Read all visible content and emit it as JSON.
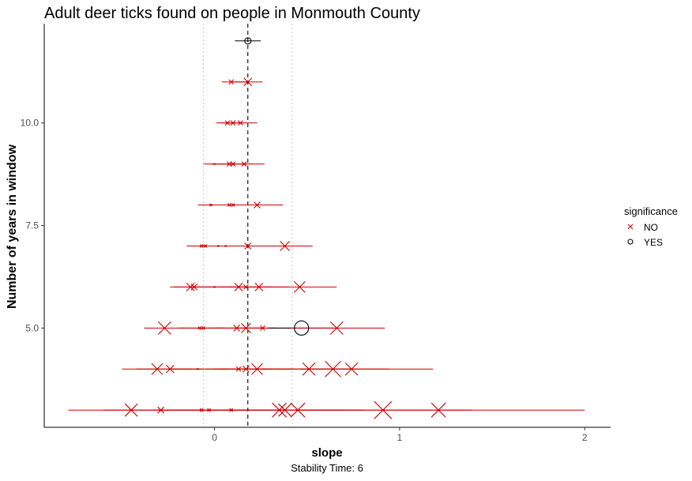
{
  "chart_data": {
    "type": "scatter",
    "title": "Adult deer ticks found on people in Monmouth County",
    "xlabel": "slope",
    "ylabel": "Number of years in window",
    "caption": "Stability Time: 6",
    "xlim": [
      -0.92,
      2.14
    ],
    "ylim": [
      2.58,
      12.42
    ],
    "x_ticks": [
      0,
      1,
      2
    ],
    "y_ticks": [
      5.0,
      7.5,
      10.0
    ],
    "y_tick_labels": [
      "5.0",
      "7.5",
      "10.0"
    ],
    "reference_lines": {
      "dashed_x": 0.18,
      "dotted_x": [
        -0.06,
        0.42
      ]
    },
    "legend": {
      "title": "significance",
      "position": "right",
      "items": [
        {
          "label": "NO",
          "color": "#cc0000",
          "marker": "x"
        },
        {
          "label": "YES",
          "color": "#000000",
          "marker": "circle"
        }
      ]
    },
    "rows": [
      {
        "y": 12,
        "points": [
          {
            "x": 0.18,
            "lo": 0.11,
            "hi": 0.25,
            "sig": "YES",
            "size": 8
          }
        ]
      },
      {
        "y": 11,
        "points": [
          {
            "x": 0.09,
            "lo": 0.04,
            "hi": 0.18,
            "sig": "NO",
            "size": 6
          },
          {
            "x": 0.18,
            "lo": 0.09,
            "hi": 0.26,
            "sig": "NO",
            "size": 10
          }
        ]
      },
      {
        "y": 10,
        "points": [
          {
            "x": 0.07,
            "lo": 0.01,
            "hi": 0.13,
            "sig": "NO",
            "size": 6
          },
          {
            "x": 0.1,
            "lo": 0.03,
            "hi": 0.17,
            "sig": "NO",
            "size": 6
          },
          {
            "x": 0.14,
            "lo": 0.05,
            "hi": 0.23,
            "sig": "NO",
            "size": 6
          }
        ]
      },
      {
        "y": 9,
        "points": [
          {
            "x": 0.0,
            "lo": -0.06,
            "hi": 0.06,
            "sig": "NO",
            "size": 2
          },
          {
            "x": 0.08,
            "lo": -0.02,
            "hi": 0.18,
            "sig": "NO",
            "size": 6
          },
          {
            "x": 0.1,
            "lo": 0.02,
            "hi": 0.2,
            "sig": "NO",
            "size": 6
          },
          {
            "x": 0.16,
            "lo": 0.06,
            "hi": 0.27,
            "sig": "NO",
            "size": 6
          }
        ]
      },
      {
        "y": 8,
        "points": [
          {
            "x": -0.02,
            "lo": -0.09,
            "hi": 0.07,
            "sig": "NO",
            "size": 3
          },
          {
            "x": 0.08,
            "lo": -0.05,
            "hi": 0.22,
            "sig": "NO",
            "size": 4
          },
          {
            "x": 0.1,
            "lo": -0.02,
            "hi": 0.2,
            "sig": "NO",
            "size": 4
          },
          {
            "x": 0.23,
            "lo": 0.07,
            "hi": 0.37,
            "sig": "NO",
            "size": 8
          }
        ]
      },
      {
        "y": 7,
        "points": [
          {
            "x": -0.07,
            "lo": -0.15,
            "hi": 0.02,
            "sig": "NO",
            "size": 4
          },
          {
            "x": -0.05,
            "lo": -0.13,
            "hi": 0.05,
            "sig": "NO",
            "size": 4
          },
          {
            "x": 0.02,
            "lo": -0.1,
            "hi": 0.14,
            "sig": "NO",
            "size": 2
          },
          {
            "x": 0.06,
            "lo": -0.08,
            "hi": 0.2,
            "sig": "NO",
            "size": 2
          },
          {
            "x": 0.18,
            "lo": 0.0,
            "hi": 0.36,
            "sig": "NO",
            "size": 8
          },
          {
            "x": 0.38,
            "lo": 0.22,
            "hi": 0.53,
            "sig": "NO",
            "size": 12
          }
        ]
      },
      {
        "y": 6,
        "points": [
          {
            "x": -0.13,
            "lo": -0.24,
            "hi": -0.02,
            "sig": "NO",
            "size": 10
          },
          {
            "x": -0.11,
            "lo": -0.22,
            "hi": 0.0,
            "sig": "NO",
            "size": 8
          },
          {
            "x": 0.0,
            "lo": -0.12,
            "hi": 0.12,
            "sig": "NO",
            "size": 2
          },
          {
            "x": 0.13,
            "lo": -0.01,
            "hi": 0.27,
            "sig": "NO",
            "size": 10
          },
          {
            "x": 0.17,
            "lo": 0.03,
            "hi": 0.31,
            "sig": "NO",
            "size": 6
          },
          {
            "x": 0.24,
            "lo": 0.08,
            "hi": 0.4,
            "sig": "NO",
            "size": 10
          },
          {
            "x": 0.46,
            "lo": 0.27,
            "hi": 0.66,
            "sig": "NO",
            "size": 14
          }
        ]
      },
      {
        "y": 5,
        "points": [
          {
            "x": -0.27,
            "lo": -0.38,
            "hi": -0.16,
            "sig": "NO",
            "size": 16
          },
          {
            "x": -0.08,
            "lo": -0.2,
            "hi": 0.04,
            "sig": "NO",
            "size": 4
          },
          {
            "x": -0.06,
            "lo": -0.18,
            "hi": 0.06,
            "sig": "NO",
            "size": 4
          },
          {
            "x": 0.12,
            "lo": -0.03,
            "hi": 0.27,
            "sig": "NO",
            "size": 8
          },
          {
            "x": 0.17,
            "lo": 0.01,
            "hi": 0.33,
            "sig": "NO",
            "size": 12
          },
          {
            "x": 0.26,
            "lo": 0.09,
            "hi": 0.43,
            "sig": "NO",
            "size": 6
          },
          {
            "x": 0.47,
            "lo": 0.29,
            "hi": 0.65,
            "sig": "YES",
            "size": 18
          },
          {
            "x": 0.66,
            "lo": 0.41,
            "hi": 0.92,
            "sig": "NO",
            "size": 16
          }
        ]
      },
      {
        "y": 4,
        "points": [
          {
            "x": -0.31,
            "lo": -0.5,
            "hi": -0.12,
            "sig": "NO",
            "size": 14
          },
          {
            "x": -0.24,
            "lo": -0.42,
            "hi": -0.06,
            "sig": "NO",
            "size": 10
          },
          {
            "x": -0.09,
            "lo": -0.25,
            "hi": 0.07,
            "sig": "NO",
            "size": 2
          },
          {
            "x": 0.13,
            "lo": -0.05,
            "hi": 0.31,
            "sig": "NO",
            "size": 6
          },
          {
            "x": 0.17,
            "lo": -0.01,
            "hi": 0.35,
            "sig": "NO",
            "size": 8
          },
          {
            "x": 0.23,
            "lo": 0.03,
            "hi": 0.43,
            "sig": "NO",
            "size": 14
          },
          {
            "x": 0.51,
            "lo": 0.25,
            "hi": 0.77,
            "sig": "NO",
            "size": 16
          },
          {
            "x": 0.64,
            "lo": 0.34,
            "hi": 0.94,
            "sig": "NO",
            "size": 20
          },
          {
            "x": 0.74,
            "lo": 0.46,
            "hi": 1.18,
            "sig": "NO",
            "size": 16
          }
        ]
      },
      {
        "y": 3,
        "points": [
          {
            "x": -0.45,
            "lo": -0.79,
            "hi": -0.11,
            "sig": "NO",
            "size": 16
          },
          {
            "x": -0.29,
            "lo": -0.6,
            "hi": 0.02,
            "sig": "NO",
            "size": 8
          },
          {
            "x": -0.07,
            "lo": -0.33,
            "hi": 0.19,
            "sig": "NO",
            "size": 4
          },
          {
            "x": -0.03,
            "lo": -0.29,
            "hi": 0.23,
            "sig": "NO",
            "size": 4
          },
          {
            "x": 0.09,
            "lo": -0.19,
            "hi": 0.37,
            "sig": "NO",
            "size": 4
          },
          {
            "x": 0.35,
            "lo": 0.03,
            "hi": 0.67,
            "sig": "NO",
            "size": 18
          },
          {
            "x": 0.38,
            "lo": 0.06,
            "hi": 0.7,
            "sig": "NO",
            "size": 16
          },
          {
            "x": 0.45,
            "lo": 0.1,
            "hi": 0.8,
            "sig": "NO",
            "size": 18
          },
          {
            "x": 0.91,
            "lo": 0.43,
            "hi": 1.39,
            "sig": "NO",
            "size": 22
          },
          {
            "x": 1.21,
            "lo": 0.61,
            "hi": 2.0,
            "sig": "NO",
            "size": 18
          }
        ]
      }
    ]
  }
}
